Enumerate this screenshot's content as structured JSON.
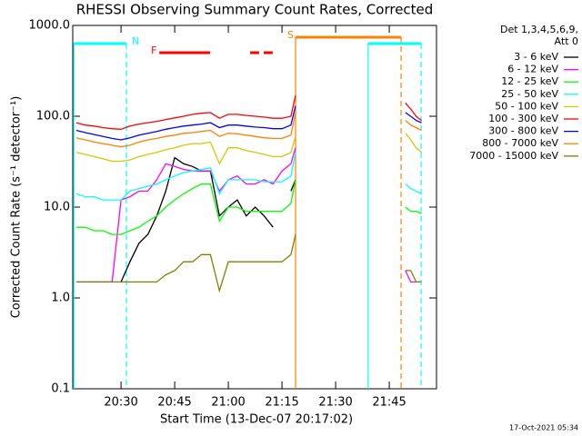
{
  "chart_data": {
    "type": "line",
    "title": "RHESSI Observing Summary Count Rates, Corrected",
    "y_label": "Corrected Count Rate (s⁻¹ detector⁻¹)",
    "x_label": "Start Time (13-Dec-07 20:17:02)",
    "legend_header": [
      "Det 1,3,4,5,6,9,",
      "Att 0"
    ],
    "footer": "17-Oct-2021 05:34",
    "log_y": true,
    "legend": "right",
    "xlim": [
      16.5,
      118.2
    ],
    "ylim": [
      0.1,
      1000
    ],
    "xticks": [
      {
        "value": 30,
        "label": "20:30"
      },
      {
        "value": 45,
        "label": "20:45"
      },
      {
        "value": 60,
        "label": "21:00"
      },
      {
        "value": 75,
        "label": "21:15"
      },
      {
        "value": 90,
        "label": "21:30"
      },
      {
        "value": 105,
        "label": "21:45"
      }
    ],
    "yticks": [
      0.1,
      {
        "value": 1,
        "label": "1.0"
      },
      {
        "value": 10,
        "label": "10.0"
      },
      {
        "value": 100,
        "label": "100.0"
      },
      {
        "value": 1000,
        "label": "1000.0"
      }
    ],
    "x": [
      17.5,
      20,
      22.5,
      25,
      27.5,
      30,
      32.5,
      35,
      37.5,
      40,
      42.5,
      45,
      47.5,
      50,
      52.5,
      55,
      57.5,
      60,
      62.5,
      65,
      67.5,
      70,
      72.5,
      75,
      77.5,
      78.8,
      95,
      109.5,
      111,
      112.5,
      114
    ],
    "series": [
      {
        "name": "3 - 6 keV",
        "color": "#000000",
        "values": [
          null,
          null,
          null,
          null,
          null,
          1.5,
          2.5,
          4,
          5,
          8,
          15,
          35,
          30,
          28,
          25,
          25,
          8,
          10,
          12,
          8,
          10,
          8,
          6,
          null,
          15,
          20,
          null,
          null,
          null,
          null,
          null
        ]
      },
      {
        "name": "6 - 12 keV",
        "color": "#ff00ff",
        "values": [
          1.5,
          1.5,
          1.5,
          1.5,
          1.5,
          12,
          13,
          15,
          15,
          20,
          30,
          28,
          26,
          25,
          25,
          25,
          15,
          20,
          22,
          18,
          18,
          20,
          18,
          25,
          30,
          45,
          null,
          2,
          1.5,
          1.5,
          1.5
        ]
      },
      {
        "name": "12 - 25 keV",
        "color": "#00ff00",
        "values": [
          6,
          6,
          5.5,
          5.5,
          5,
          5,
          5.5,
          6,
          7,
          8,
          10,
          12,
          14,
          16,
          18,
          18,
          7,
          10,
          10,
          9,
          9,
          9,
          9,
          9,
          11,
          20,
          null,
          10,
          9,
          9,
          8.5
        ]
      },
      {
        "name": "25 - 50 keV",
        "color": "#00ffff",
        "values": [
          14,
          13,
          13,
          12,
          12,
          12,
          15,
          16,
          17,
          18,
          20,
          22,
          24,
          25,
          26,
          27,
          14,
          20,
          20,
          20,
          20,
          19,
          19,
          19,
          22,
          40,
          null,
          18,
          16,
          15,
          14
        ]
      },
      {
        "name": "50 - 100 keV",
        "color": "#d4c800",
        "values": [
          40,
          38,
          36,
          34,
          32,
          32,
          33,
          36,
          38,
          40,
          43,
          45,
          48,
          50,
          50,
          52,
          30,
          45,
          45,
          42,
          40,
          38,
          36,
          36,
          40,
          60,
          null,
          65,
          55,
          45,
          40
        ]
      },
      {
        "name": "100 - 300 keV",
        "color": "#ff0000",
        "values": [
          85,
          80,
          78,
          75,
          73,
          72,
          78,
          82,
          85,
          88,
          92,
          96,
          100,
          105,
          108,
          110,
          95,
          105,
          105,
          102,
          100,
          98,
          95,
          95,
          100,
          170,
          null,
          140,
          120,
          100,
          90
        ]
      },
      {
        "name": "300 - 800 keV",
        "color": "#0000ff",
        "values": [
          70,
          66,
          63,
          60,
          57,
          55,
          58,
          62,
          65,
          68,
          72,
          75,
          78,
          80,
          82,
          85,
          75,
          80,
          80,
          78,
          76,
          75,
          73,
          73,
          80,
          130,
          null,
          110,
          100,
          90,
          85
        ]
      },
      {
        "name": "800 - 7000 keV",
        "color": "#ff8000",
        "values": [
          58,
          55,
          52,
          50,
          48,
          46,
          48,
          52,
          55,
          57,
          60,
          62,
          65,
          66,
          68,
          70,
          60,
          65,
          64,
          62,
          60,
          58,
          57,
          57,
          62,
          110,
          null,
          90,
          80,
          75,
          70
        ]
      },
      {
        "name": "7000 - 15000 keV",
        "color": "#808000",
        "values": [
          1.5,
          1.5,
          1.5,
          1.5,
          1.5,
          1.5,
          1.5,
          1.5,
          1.5,
          1.5,
          1.8,
          2,
          2.5,
          2.5,
          3,
          3,
          1.2,
          2.5,
          2.5,
          2.5,
          2.5,
          2.5,
          2.5,
          2.5,
          3,
          5,
          null,
          2,
          2,
          1.5,
          1.5
        ]
      }
    ],
    "intervals": [
      {
        "label": "N",
        "color": "#00ffff",
        "segments": [
          [
            16.8,
            31.5
          ]
        ],
        "boundaries": true
      },
      {
        "label": "F",
        "color": "#ff0000",
        "segments": [
          [
            40.7,
            54.9
          ],
          [
            66.1,
            68.6
          ],
          [
            69.9,
            72.4
          ]
        ],
        "boundaries": false
      },
      {
        "label": "S",
        "color": "#ff8000",
        "segments": [
          [
            78.8,
            108.3
          ]
        ],
        "boundaries": true
      },
      {
        "color": "#00ffff",
        "segments": [
          [
            99.1,
            113.9
          ]
        ],
        "boundaries": true
      }
    ]
  }
}
